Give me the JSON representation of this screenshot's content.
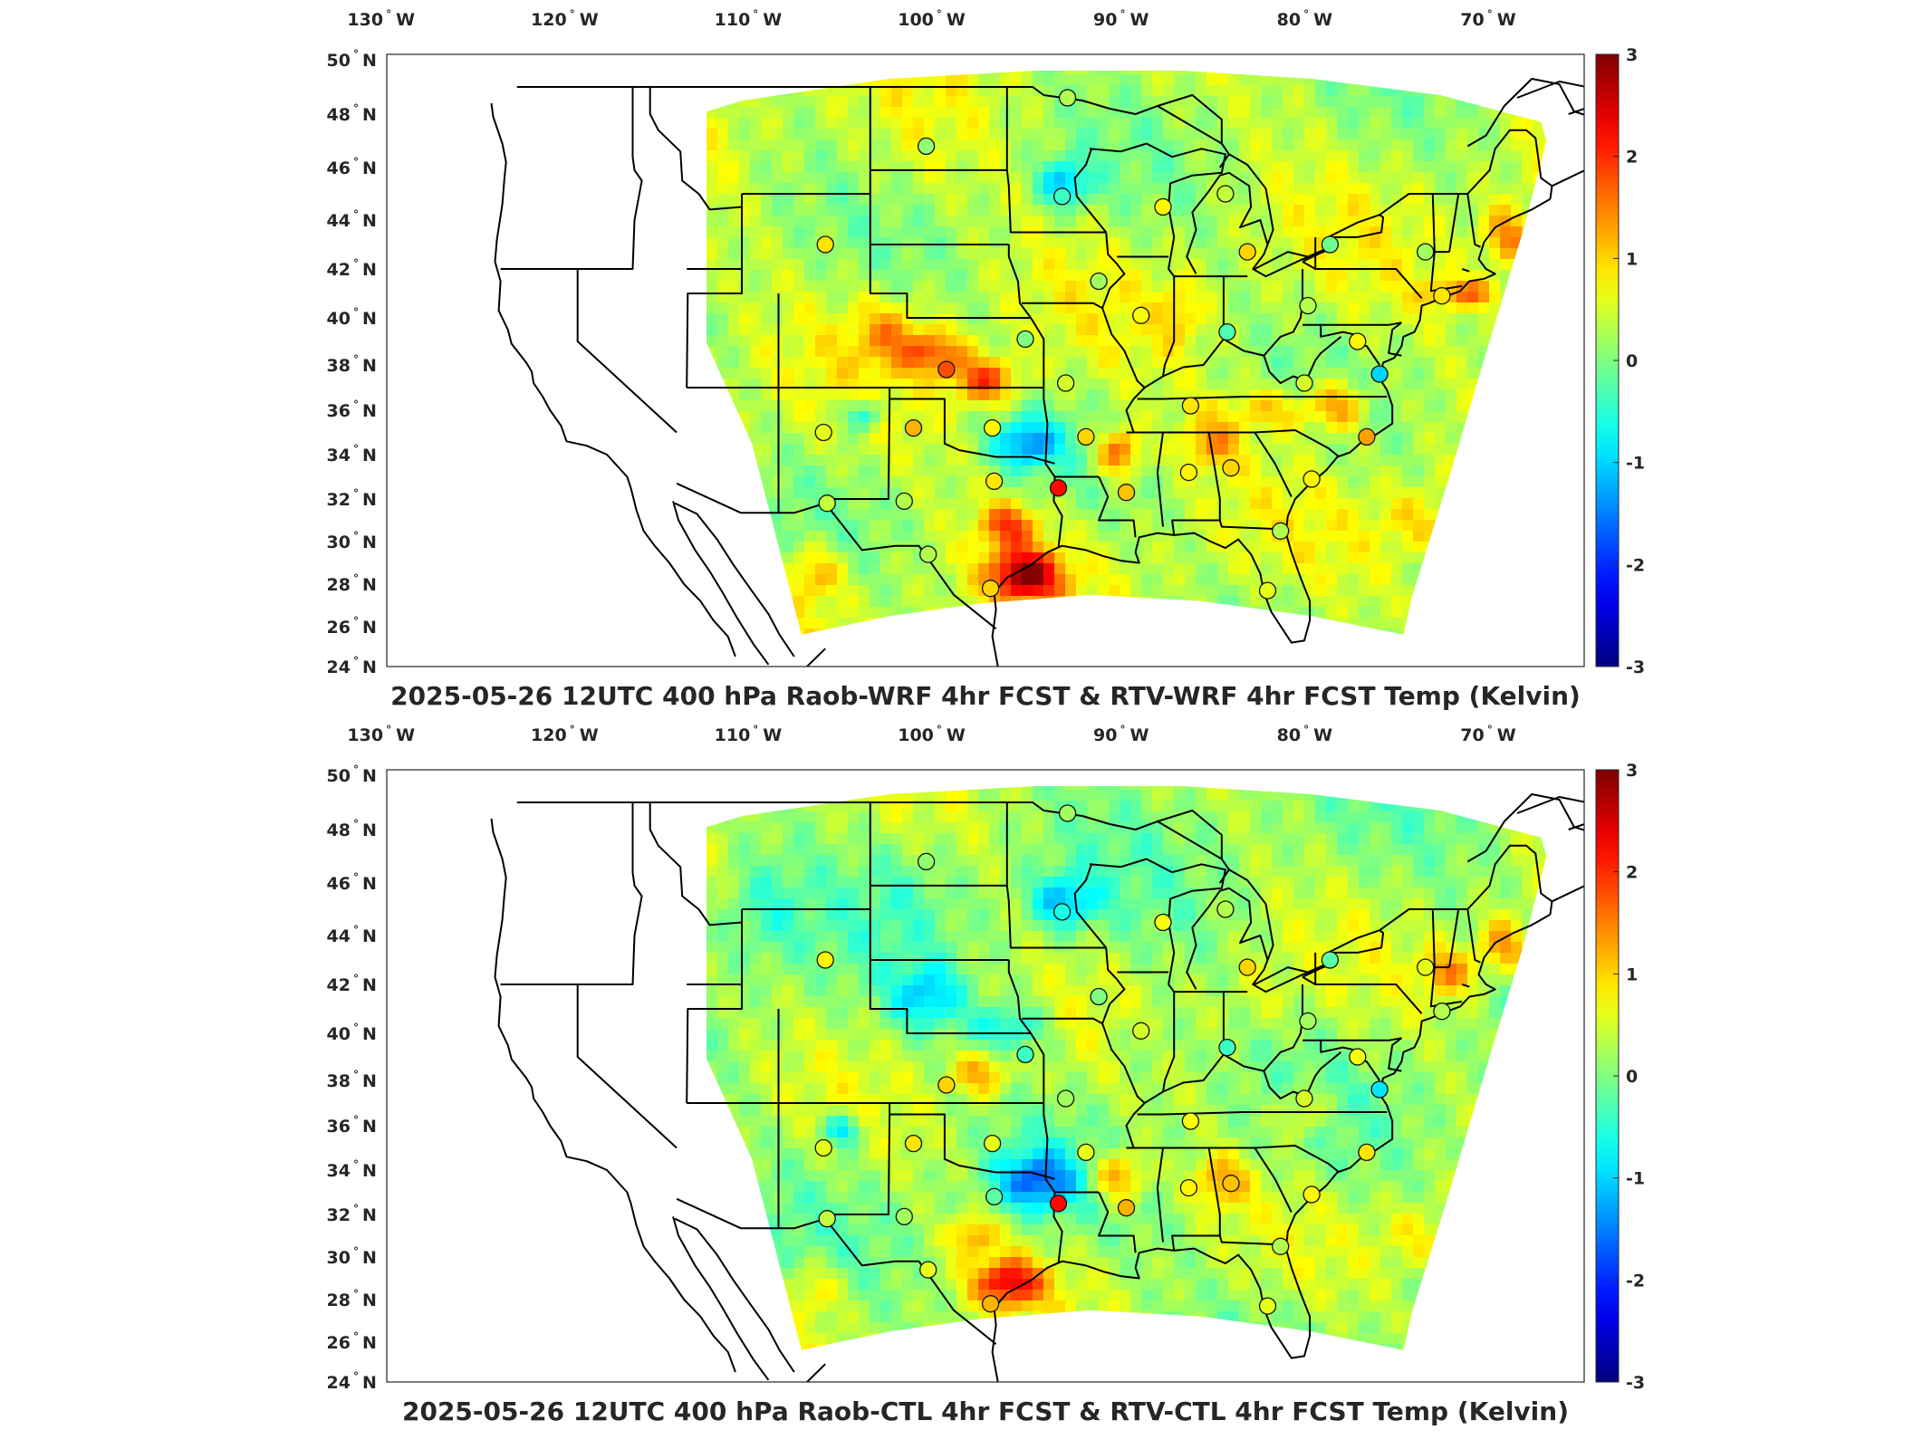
{
  "panels": [
    {
      "title": "2025-05-26 12UTC 400 hPa Raob-WRF 4hr FCST & RTV-WRF 4hr FCST Temp (Kelvin)",
      "variant": "wrf"
    },
    {
      "title": "2025-05-26 12UTC 400 hPa Raob-CTL 4hr FCST & RTV-CTL 4hr FCST Temp (Kelvin)",
      "variant": "ctl"
    }
  ],
  "lon_ticks": [
    {
      "value": "130",
      "hemi": "W"
    },
    {
      "value": "120",
      "hemi": "W"
    },
    {
      "value": "110",
      "hemi": "W"
    },
    {
      "value": "100",
      "hemi": "W"
    },
    {
      "value": "90",
      "hemi": "W"
    },
    {
      "value": "80",
      "hemi": "W"
    },
    {
      "value": "70",
      "hemi": "W"
    }
  ],
  "lat_ticks": [
    {
      "value": "50",
      "hemi": "N"
    },
    {
      "value": "48",
      "hemi": "N"
    },
    {
      "value": "46",
      "hemi": "N"
    },
    {
      "value": "44",
      "hemi": "N"
    },
    {
      "value": "42",
      "hemi": "N"
    },
    {
      "value": "40",
      "hemi": "N"
    },
    {
      "value": "38",
      "hemi": "N"
    },
    {
      "value": "36",
      "hemi": "N"
    },
    {
      "value": "34",
      "hemi": "N"
    },
    {
      "value": "32",
      "hemi": "N"
    },
    {
      "value": "30",
      "hemi": "N"
    },
    {
      "value": "28",
      "hemi": "N"
    },
    {
      "value": "26",
      "hemi": "N"
    },
    {
      "value": "24",
      "hemi": "N"
    }
  ],
  "colorbar": {
    "ticks": [
      "3",
      "2",
      "1",
      "0",
      "-1",
      "-2",
      "-3"
    ],
    "min": -3,
    "max": 3,
    "colormap": "jet"
  },
  "stations": [
    {
      "lon": -93.3,
      "lat": 48.6,
      "wrf": 0.3,
      "ctl": 0.2
    },
    {
      "lon": -101.0,
      "lat": 46.8,
      "wrf": 0.1,
      "ctl": 0.1
    },
    {
      "lon": -93.6,
      "lat": 44.9,
      "wrf": -0.4,
      "ctl": -0.6
    },
    {
      "lon": -84.7,
      "lat": 45.0,
      "wrf": 0.4,
      "ctl": 0.3
    },
    {
      "lon": -88.1,
      "lat": 44.5,
      "wrf": 0.8,
      "ctl": 0.7
    },
    {
      "lon": -106.5,
      "lat": 43.0,
      "wrf": 0.9,
      "ctl": 0.8
    },
    {
      "lon": -83.5,
      "lat": 42.7,
      "wrf": 1.0,
      "ctl": 1.0
    },
    {
      "lon": -79.0,
      "lat": 43.0,
      "wrf": -0.1,
      "ctl": -0.2
    },
    {
      "lon": -73.8,
      "lat": 42.7,
      "wrf": 0.2,
      "ctl": 0.6
    },
    {
      "lon": -91.6,
      "lat": 41.5,
      "wrf": 0.2,
      "ctl": 0.0
    },
    {
      "lon": -89.3,
      "lat": 40.1,
      "wrf": 0.7,
      "ctl": 0.5
    },
    {
      "lon": -80.2,
      "lat": 40.5,
      "wrf": 0.3,
      "ctl": 0.2
    },
    {
      "lon": -72.9,
      "lat": 40.9,
      "wrf": 0.9,
      "ctl": 0.3
    },
    {
      "lon": -95.6,
      "lat": 39.1,
      "wrf": 0.0,
      "ctl": -0.4
    },
    {
      "lon": -84.6,
      "lat": 39.4,
      "wrf": -0.3,
      "ctl": -0.4
    },
    {
      "lon": -77.5,
      "lat": 39.0,
      "wrf": 0.8,
      "ctl": 0.7
    },
    {
      "lon": -99.9,
      "lat": 37.8,
      "wrf": 1.8,
      "ctl": 1.0
    },
    {
      "lon": -93.4,
      "lat": 37.2,
      "wrf": 0.5,
      "ctl": 0.2
    },
    {
      "lon": -80.4,
      "lat": 37.2,
      "wrf": 0.5,
      "ctl": 0.5
    },
    {
      "lon": -76.3,
      "lat": 37.6,
      "wrf": -1.0,
      "ctl": -0.9
    },
    {
      "lon": -86.6,
      "lat": 36.2,
      "wrf": 0.9,
      "ctl": 0.7
    },
    {
      "lon": -106.6,
      "lat": 35.0,
      "wrf": 0.6,
      "ctl": 0.6
    },
    {
      "lon": -101.7,
      "lat": 35.2,
      "wrf": 1.2,
      "ctl": 0.9
    },
    {
      "lon": -97.4,
      "lat": 35.2,
      "wrf": 0.8,
      "ctl": 0.6
    },
    {
      "lon": -92.3,
      "lat": 34.8,
      "wrf": 1.0,
      "ctl": 0.6
    },
    {
      "lon": -77.0,
      "lat": 34.8,
      "wrf": 1.3,
      "ctl": 0.9
    },
    {
      "lon": -84.4,
      "lat": 33.4,
      "wrf": 1.0,
      "ctl": 1.1
    },
    {
      "lon": -86.7,
      "lat": 33.2,
      "wrf": 0.8,
      "ctl": 0.8
    },
    {
      "lon": -97.3,
      "lat": 32.8,
      "wrf": 0.9,
      "ctl": -0.2
    },
    {
      "lon": -93.8,
      "lat": 32.5,
      "wrf": 2.2,
      "ctl": 2.2
    },
    {
      "lon": -90.1,
      "lat": 32.3,
      "wrf": 1.1,
      "ctl": 1.2
    },
    {
      "lon": -80.0,
      "lat": 32.9,
      "wrf": 0.8,
      "ctl": 0.8
    },
    {
      "lon": -106.4,
      "lat": 31.8,
      "wrf": 0.4,
      "ctl": 0.4
    },
    {
      "lon": -102.2,
      "lat": 31.9,
      "wrf": 0.3,
      "ctl": 0.2
    },
    {
      "lon": -81.7,
      "lat": 30.5,
      "wrf": 0.3,
      "ctl": 0.3
    },
    {
      "lon": -100.9,
      "lat": 29.4,
      "wrf": 0.3,
      "ctl": 0.6
    },
    {
      "lon": -97.5,
      "lat": 27.8,
      "wrf": 1.0,
      "ctl": 1.2
    },
    {
      "lon": -82.4,
      "lat": 27.7,
      "wrf": 0.6,
      "ctl": 0.6
    }
  ]
}
